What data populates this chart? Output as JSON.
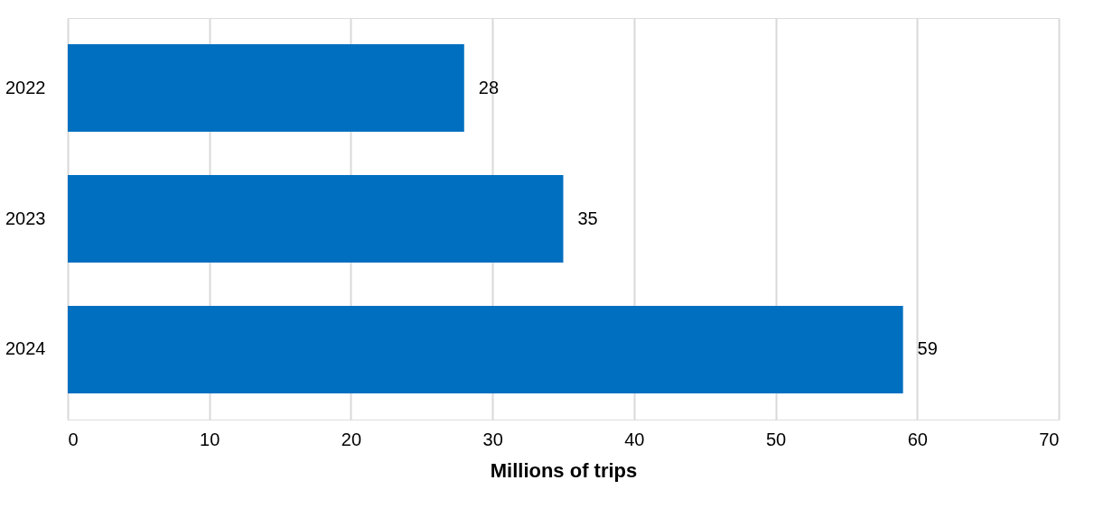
{
  "chart_data": {
    "type": "bar",
    "orientation": "horizontal",
    "categories": [
      "2022",
      "2023",
      "2024"
    ],
    "values": [
      28,
      35,
      59
    ],
    "color": "#006fc0",
    "xlim": [
      0,
      70
    ],
    "xticks": [
      0,
      10,
      20,
      30,
      40,
      50,
      60,
      70
    ],
    "xlabel": "Millions of trips",
    "grid": "x",
    "data_labels": true
  }
}
